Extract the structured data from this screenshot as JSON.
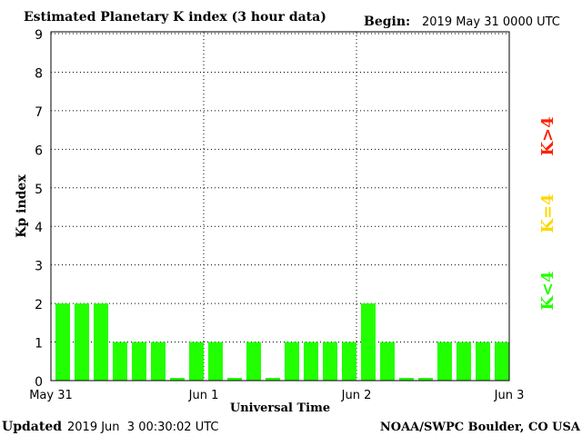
{
  "header": {
    "title": "Estimated Planetary K index (3 hour data)",
    "begin_label": "Begin:",
    "begin_value": "2019 May 31 0000 UTC"
  },
  "footer": {
    "updated_label": "Updated",
    "updated_value": "2019 Jun  3 00:30:02 UTC",
    "source": "NOAA/SWPC Boulder, CO USA"
  },
  "legend": {
    "items": [
      {
        "label": "K>4",
        "color": "#ff2000"
      },
      {
        "label": "K=4",
        "color": "#ffd700"
      },
      {
        "label": "K<4",
        "color": "#22ff00"
      }
    ]
  },
  "chart_data": {
    "type": "bar",
    "title": "Estimated Planetary K index (3 hour data)",
    "xlabel": "Universal Time",
    "ylabel": "Kp index",
    "ylim": [
      0,
      9
    ],
    "yticks": [
      "0",
      "1",
      "2",
      "3",
      "4",
      "5",
      "6",
      "7",
      "8",
      "9"
    ],
    "xticks": [
      "May 31",
      "Jun 1",
      "Jun 2",
      "Jun 3"
    ],
    "grid": true,
    "bar_color": "#22ff00",
    "values": [
      2,
      2,
      2,
      1,
      1,
      1,
      0,
      1,
      1,
      0,
      1,
      0,
      1,
      1,
      1,
      1,
      2,
      1,
      0,
      0,
      1,
      1,
      1,
      1
    ]
  }
}
